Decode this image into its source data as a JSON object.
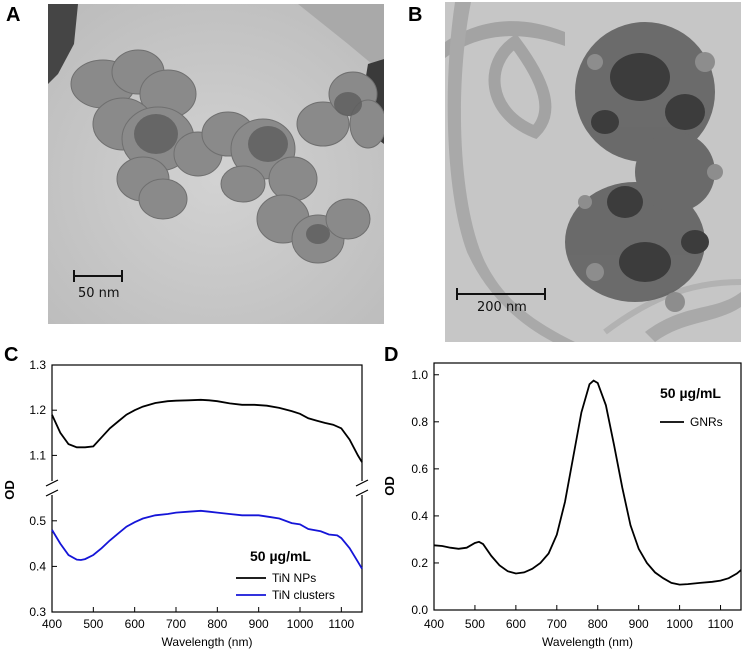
{
  "panels": [
    {
      "letter": "A"
    },
    {
      "letter": "B"
    },
    {
      "letter": "C"
    },
    {
      "letter": "D"
    }
  ],
  "micrographs": [
    {
      "scale_bar_label": "50 nm"
    },
    {
      "scale_bar_label": "200 nm"
    }
  ],
  "chart_data": [
    {
      "type": "line",
      "xlabel": "Wavelength (nm)",
      "ylabel": "OD",
      "xlim": [
        400,
        1150
      ],
      "x_ticks": [
        400,
        500,
        600,
        700,
        800,
        900,
        1000,
        1100
      ],
      "broken_axis": true,
      "upper_ylim": [
        1.05,
        1.3
      ],
      "upper_ticks": [
        "1.1",
        "1.2",
        "1.3"
      ],
      "lower_ylim": [
        0.3,
        0.55
      ],
      "lower_ticks": [
        "0.3",
        "0.4",
        "0.5"
      ],
      "annotation": "50 µg/mL",
      "legend_position": "lower-right",
      "series": [
        {
          "name": "TiN NPs",
          "color": "#000000",
          "x": [
            400,
            420,
            440,
            460,
            480,
            500,
            520,
            540,
            560,
            580,
            600,
            620,
            650,
            680,
            700,
            730,
            760,
            780,
            800,
            830,
            860,
            890,
            920,
            950,
            980,
            1000,
            1020,
            1040,
            1060,
            1080,
            1100,
            1120,
            1140,
            1150
          ],
          "y": [
            1.19,
            1.15,
            1.125,
            1.118,
            1.118,
            1.12,
            1.14,
            1.16,
            1.175,
            1.19,
            1.2,
            1.208,
            1.216,
            1.22,
            1.221,
            1.222,
            1.223,
            1.222,
            1.22,
            1.215,
            1.212,
            1.212,
            1.21,
            1.205,
            1.198,
            1.192,
            1.182,
            1.177,
            1.172,
            1.168,
            1.16,
            1.135,
            1.1,
            1.085
          ]
        },
        {
          "name": "TiN clusters",
          "color": "#1515d8",
          "x": [
            400,
            420,
            440,
            460,
            470,
            480,
            500,
            520,
            540,
            560,
            580,
            600,
            620,
            650,
            680,
            700,
            730,
            760,
            780,
            800,
            830,
            860,
            900,
            930,
            950,
            980,
            1000,
            1020,
            1050,
            1070,
            1090,
            1100,
            1120,
            1140,
            1150
          ],
          "y": [
            0.48,
            0.45,
            0.425,
            0.415,
            0.414,
            0.416,
            0.425,
            0.44,
            0.457,
            0.472,
            0.487,
            0.497,
            0.505,
            0.512,
            0.515,
            0.518,
            0.52,
            0.522,
            0.52,
            0.518,
            0.515,
            0.512,
            0.512,
            0.508,
            0.505,
            0.495,
            0.492,
            0.482,
            0.477,
            0.47,
            0.468,
            0.462,
            0.44,
            0.41,
            0.395
          ]
        }
      ]
    },
    {
      "type": "line",
      "xlabel": "Wavelength (nm)",
      "ylabel": "OD",
      "xlim": [
        400,
        1150
      ],
      "ylim": [
        0,
        1.05
      ],
      "x_ticks": [
        400,
        500,
        600,
        700,
        800,
        900,
        1000,
        1100
      ],
      "y_ticks": [
        "0.0",
        "0.2",
        "0.4",
        "0.6",
        "0.8",
        "1.0"
      ],
      "annotation": "50 µg/mL",
      "legend_position": "top-right",
      "series": [
        {
          "name": "GNRs",
          "color": "#000000",
          "x": [
            400,
            420,
            440,
            460,
            480,
            500,
            510,
            520,
            540,
            560,
            580,
            600,
            620,
            640,
            660,
            680,
            700,
            720,
            740,
            760,
            780,
            790,
            800,
            820,
            840,
            860,
            880,
            900,
            920,
            940,
            960,
            980,
            1000,
            1020,
            1050,
            1080,
            1100,
            1120,
            1140,
            1150
          ],
          "y": [
            0.275,
            0.272,
            0.265,
            0.26,
            0.265,
            0.285,
            0.29,
            0.28,
            0.23,
            0.19,
            0.165,
            0.155,
            0.16,
            0.175,
            0.2,
            0.24,
            0.32,
            0.46,
            0.65,
            0.84,
            0.96,
            0.975,
            0.965,
            0.87,
            0.7,
            0.52,
            0.36,
            0.26,
            0.2,
            0.16,
            0.135,
            0.115,
            0.108,
            0.11,
            0.115,
            0.12,
            0.125,
            0.135,
            0.155,
            0.17
          ]
        }
      ]
    }
  ]
}
